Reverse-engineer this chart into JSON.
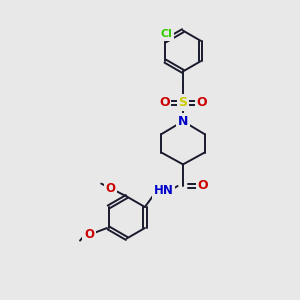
{
  "background_color": "#e8e8e8",
  "atom_colors": {
    "C": "#1a1a2e",
    "N": "#0000cc",
    "O": "#cc0000",
    "S": "#cccc00",
    "Cl": "#33cc00",
    "H": "#808080"
  },
  "bond_color": "#1a1a2e",
  "bond_width": 1.4,
  "figsize": [
    3.0,
    3.0
  ],
  "dpi": 100
}
